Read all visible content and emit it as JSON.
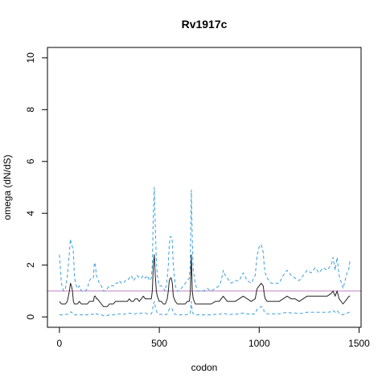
{
  "chart_data": {
    "type": "line",
    "title": "Rv1917c",
    "xlabel": "codon",
    "ylabel": "omega (dN/dS)",
    "xlim": [
      -60,
      1510
    ],
    "ylim": [
      -0.4,
      10.4
    ],
    "x_ticks": [
      0,
      500,
      1000,
      1500
    ],
    "y_ticks": [
      0,
      2,
      4,
      6,
      8,
      10
    ],
    "x_tick_labels": [
      "0",
      "500",
      "1000",
      "1500"
    ],
    "y_tick_labels": [
      "0",
      "2",
      "4",
      "6",
      "8",
      "10"
    ],
    "grid": false,
    "legend": "none",
    "reference_line": {
      "y": 1,
      "color": "#c080c0"
    },
    "series": [
      {
        "role": "upper",
        "style": "dashed",
        "color": "#3a9fdd",
        "x": [
          0,
          10,
          20,
          30,
          40,
          50,
          55,
          60,
          65,
          70,
          75,
          80,
          90,
          100,
          110,
          120,
          130,
          140,
          150,
          160,
          170,
          175,
          180,
          185,
          190,
          200,
          210,
          220,
          230,
          240,
          250,
          260,
          270,
          280,
          290,
          300,
          310,
          320,
          330,
          340,
          350,
          360,
          370,
          380,
          390,
          400,
          410,
          420,
          430,
          440,
          450,
          460,
          465,
          470,
          475,
          480,
          485,
          490,
          500,
          510,
          520,
          530,
          540,
          545,
          550,
          555,
          560,
          565,
          570,
          580,
          590,
          600,
          610,
          620,
          630,
          640,
          650,
          655,
          660,
          665,
          670,
          680,
          690,
          700,
          720,
          740,
          760,
          780,
          800,
          810,
          820,
          830,
          840,
          860,
          880,
          900,
          920,
          940,
          960,
          980,
          990,
          1000,
          1010,
          1020,
          1025,
          1030,
          1040,
          1060,
          1080,
          1100,
          1120,
          1140,
          1160,
          1180,
          1200,
          1220,
          1240,
          1260,
          1280,
          1300,
          1320,
          1340,
          1360,
          1370,
          1380,
          1390,
          1400,
          1420,
          1440,
          1450,
          1455
        ],
        "values": [
          2.4,
          1.3,
          1.0,
          1.1,
          1.6,
          2.5,
          3.0,
          2.8,
          2.7,
          2.5,
          1.6,
          1.3,
          1.1,
          1.2,
          1.0,
          1.0,
          1.0,
          1.1,
          1.4,
          1.5,
          1.5,
          2.1,
          2.0,
          1.6,
          1.5,
          1.3,
          1.2,
          1.0,
          1.0,
          1.1,
          1.2,
          1.2,
          1.2,
          1.3,
          1.3,
          1.4,
          1.3,
          1.3,
          1.4,
          1.4,
          1.5,
          1.6,
          1.4,
          1.5,
          1.6,
          1.5,
          1.5,
          1.6,
          1.5,
          1.6,
          1.4,
          1.5,
          2.0,
          4.0,
          5.0,
          3.5,
          2.2,
          1.6,
          1.2,
          1.2,
          1.1,
          1.0,
          1.5,
          2.0,
          2.8,
          3.1,
          3.1,
          2.9,
          2.0,
          1.2,
          1.0,
          1.0,
          1.1,
          1.2,
          1.3,
          1.4,
          1.5,
          2.0,
          4.9,
          3.0,
          1.8,
          1.3,
          1.0,
          1.0,
          1.0,
          1.1,
          1.0,
          1.1,
          1.2,
          1.4,
          1.8,
          1.6,
          1.5,
          1.3,
          1.4,
          1.4,
          1.7,
          1.4,
          1.3,
          1.6,
          2.4,
          2.7,
          2.8,
          2.5,
          2.0,
          1.7,
          1.5,
          1.3,
          1.3,
          1.3,
          1.6,
          1.8,
          1.6,
          1.5,
          1.4,
          1.6,
          1.8,
          1.7,
          1.9,
          1.7,
          1.9,
          1.8,
          2.0,
          2.3,
          1.8,
          2.3,
          1.6,
          1.1,
          1.7,
          1.9,
          2.2
        ]
      },
      {
        "role": "mean",
        "style": "solid",
        "color": "#222222",
        "x": [
          0,
          10,
          20,
          30,
          40,
          50,
          55,
          60,
          65,
          70,
          75,
          80,
          90,
          100,
          110,
          120,
          130,
          140,
          150,
          160,
          170,
          175,
          180,
          185,
          190,
          200,
          210,
          220,
          230,
          240,
          250,
          260,
          270,
          280,
          290,
          300,
          310,
          320,
          330,
          340,
          350,
          360,
          370,
          380,
          390,
          400,
          410,
          420,
          430,
          440,
          450,
          460,
          465,
          470,
          475,
          480,
          485,
          490,
          500,
          510,
          520,
          530,
          540,
          545,
          550,
          555,
          560,
          565,
          570,
          580,
          590,
          600,
          610,
          620,
          630,
          640,
          650,
          655,
          660,
          665,
          670,
          680,
          690,
          700,
          720,
          740,
          760,
          780,
          800,
          810,
          820,
          830,
          840,
          860,
          880,
          900,
          920,
          940,
          960,
          980,
          990,
          1000,
          1010,
          1020,
          1025,
          1030,
          1040,
          1060,
          1080,
          1100,
          1120,
          1140,
          1160,
          1180,
          1200,
          1220,
          1240,
          1260,
          1280,
          1300,
          1320,
          1340,
          1360,
          1370,
          1380,
          1390,
          1400,
          1420,
          1440,
          1450,
          1455
        ],
        "values": [
          0.6,
          0.5,
          0.5,
          0.5,
          0.6,
          1.0,
          1.3,
          1.2,
          1.0,
          0.6,
          0.5,
          0.5,
          0.5,
          0.6,
          0.5,
          0.5,
          0.5,
          0.5,
          0.6,
          0.6,
          0.6,
          0.8,
          0.8,
          0.7,
          0.7,
          0.6,
          0.5,
          0.4,
          0.4,
          0.4,
          0.5,
          0.5,
          0.5,
          0.6,
          0.6,
          0.6,
          0.6,
          0.6,
          0.6,
          0.6,
          0.7,
          0.6,
          0.6,
          0.7,
          0.7,
          0.6,
          0.7,
          0.8,
          0.7,
          0.7,
          0.7,
          0.7,
          1.0,
          2.0,
          2.4,
          1.6,
          1.0,
          0.8,
          0.6,
          0.6,
          0.5,
          0.5,
          0.7,
          1.0,
          1.4,
          1.5,
          1.5,
          1.3,
          0.8,
          0.6,
          0.5,
          0.5,
          0.5,
          0.5,
          0.5,
          0.6,
          0.6,
          0.9,
          2.4,
          1.0,
          0.7,
          0.5,
          0.5,
          0.5,
          0.5,
          0.5,
          0.5,
          0.6,
          0.6,
          0.7,
          0.8,
          0.7,
          0.6,
          0.6,
          0.6,
          0.7,
          0.8,
          0.7,
          0.6,
          0.7,
          1.1,
          1.2,
          1.3,
          1.2,
          0.9,
          0.7,
          0.6,
          0.6,
          0.6,
          0.6,
          0.7,
          0.8,
          0.7,
          0.7,
          0.6,
          0.7,
          0.8,
          0.8,
          0.8,
          0.8,
          0.8,
          0.8,
          0.9,
          1.0,
          0.8,
          1.0,
          0.7,
          0.5,
          0.7,
          0.8,
          0.8
        ]
      },
      {
        "role": "lower",
        "style": "dashed",
        "color": "#3a9fdd",
        "x": [
          0,
          10,
          20,
          30,
          40,
          50,
          55,
          60,
          65,
          70,
          75,
          80,
          90,
          100,
          110,
          120,
          130,
          140,
          150,
          160,
          170,
          175,
          180,
          185,
          190,
          200,
          210,
          220,
          230,
          240,
          250,
          260,
          270,
          280,
          290,
          300,
          310,
          320,
          330,
          340,
          350,
          360,
          370,
          380,
          390,
          400,
          410,
          420,
          430,
          440,
          450,
          460,
          465,
          470,
          475,
          480,
          485,
          490,
          500,
          510,
          520,
          530,
          540,
          545,
          550,
          555,
          560,
          565,
          570,
          580,
          590,
          600,
          610,
          620,
          630,
          640,
          650,
          655,
          660,
          665,
          670,
          680,
          690,
          700,
          720,
          740,
          760,
          780,
          800,
          810,
          820,
          830,
          840,
          860,
          880,
          900,
          920,
          940,
          960,
          980,
          990,
          1000,
          1010,
          1020,
          1025,
          1030,
          1040,
          1060,
          1080,
          1100,
          1120,
          1140,
          1160,
          1180,
          1200,
          1220,
          1240,
          1260,
          1280,
          1300,
          1320,
          1340,
          1360,
          1370,
          1380,
          1390,
          1400,
          1420,
          1440,
          1450,
          1455
        ],
        "values": [
          0.08,
          0.08,
          0.08,
          0.1,
          0.1,
          0.15,
          0.2,
          0.18,
          0.15,
          0.1,
          0.08,
          0.08,
          0.08,
          0.1,
          0.08,
          0.08,
          0.08,
          0.08,
          0.1,
          0.1,
          0.1,
          0.15,
          0.15,
          0.12,
          0.1,
          0.1,
          0.08,
          0.05,
          0.05,
          0.05,
          0.08,
          0.08,
          0.08,
          0.1,
          0.1,
          0.12,
          0.1,
          0.1,
          0.12,
          0.12,
          0.15,
          0.12,
          0.12,
          0.12,
          0.15,
          0.12,
          0.15,
          0.15,
          0.15,
          0.12,
          0.12,
          0.12,
          0.2,
          0.5,
          0.6,
          0.4,
          0.25,
          0.15,
          0.1,
          0.1,
          0.08,
          0.08,
          0.12,
          0.2,
          0.3,
          0.35,
          0.35,
          0.3,
          0.15,
          0.1,
          0.08,
          0.08,
          0.08,
          0.08,
          0.08,
          0.1,
          0.1,
          0.15,
          0.6,
          0.2,
          0.12,
          0.08,
          0.08,
          0.08,
          0.08,
          0.08,
          0.08,
          0.1,
          0.1,
          0.12,
          0.15,
          0.12,
          0.1,
          0.1,
          0.1,
          0.12,
          0.15,
          0.12,
          0.1,
          0.12,
          0.3,
          0.35,
          0.4,
          0.35,
          0.2,
          0.15,
          0.12,
          0.12,
          0.12,
          0.12,
          0.15,
          0.18,
          0.15,
          0.15,
          0.12,
          0.15,
          0.18,
          0.18,
          0.18,
          0.18,
          0.18,
          0.18,
          0.2,
          0.25,
          0.18,
          0.25,
          0.15,
          0.08,
          0.15,
          0.18,
          0.18
        ]
      }
    ]
  }
}
